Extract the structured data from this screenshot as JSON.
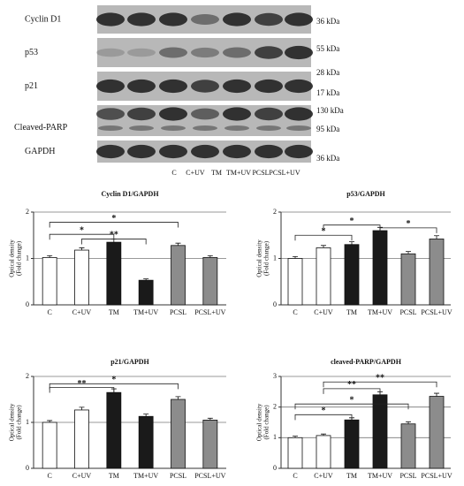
{
  "blot": {
    "proteins": [
      "Cyclin D1",
      "p53",
      "p21",
      "Cleaved-PARP",
      "GAPDH"
    ],
    "markers": [
      "36 kDa",
      "55 kDa",
      "28 kDa",
      "17 kDa",
      "130 kDa",
      "95 kDa",
      "36 kDa"
    ],
    "lanes": [
      "C",
      "C+UV",
      "TM",
      "TM+UV",
      "PCSL",
      "PCSL+UV"
    ]
  },
  "chart_data": [
    {
      "type": "bar",
      "title": "Cyclin D1/GAPDH",
      "ylabel": [
        "Optical density",
        "(Fold change)"
      ],
      "categories": [
        "C",
        "C+UV",
        "TM",
        "TM+UV",
        "PCSL",
        "PCSL+UV"
      ],
      "values": [
        1.02,
        1.18,
        1.35,
        0.53,
        1.28,
        1.02
      ],
      "errors": [
        0.04,
        0.05,
        0.07,
        0.03,
        0.05,
        0.04
      ],
      "colors": [
        "#ffffff",
        "#ffffff",
        "#1a1a1a",
        "#1a1a1a",
        "#8c8c8c",
        "#8c8c8c"
      ],
      "ylim": [
        0,
        2
      ],
      "yticks": [
        0,
        1,
        2
      ],
      "grid": true,
      "brackets": [
        {
          "between": [
            "C",
            "PCSL"
          ],
          "y": 1.78,
          "label": "*"
        },
        {
          "between": [
            "C",
            "TM"
          ],
          "y": 1.52,
          "label": "*"
        },
        {
          "between": [
            "C+UV",
            "TM+UV"
          ],
          "y": 1.42,
          "label": "**"
        }
      ]
    },
    {
      "type": "bar",
      "title": "p53/GAPDH",
      "ylabel": [
        "Optical density",
        "(Fold change)"
      ],
      "categories": [
        "C",
        "C+UV",
        "TM",
        "TM+UV",
        "PCSL",
        "PCSL+UV"
      ],
      "values": [
        1.0,
        1.23,
        1.3,
        1.6,
        1.1,
        1.42
      ],
      "errors": [
        0.04,
        0.05,
        0.06,
        0.07,
        0.05,
        0.07
      ],
      "colors": [
        "#ffffff",
        "#ffffff",
        "#1a1a1a",
        "#1a1a1a",
        "#8c8c8c",
        "#8c8c8c"
      ],
      "ylim": [
        0,
        2
      ],
      "yticks": [
        0,
        1,
        2
      ],
      "grid": true,
      "brackets": [
        {
          "between": [
            "C",
            "TM"
          ],
          "y": 1.5,
          "label": "*"
        },
        {
          "between": [
            "C+UV",
            "TM+UV"
          ],
          "y": 1.72,
          "label": "*"
        },
        {
          "between": [
            "TM+UV",
            "PCSL+UV"
          ],
          "y": 1.66,
          "label": "*"
        }
      ]
    },
    {
      "type": "bar",
      "title": "p21/GAPDH",
      "ylabel": [
        "Optical density",
        "(Fold change)"
      ],
      "categories": [
        "C",
        "C+UV",
        "TM",
        "TM+UV",
        "PCSL",
        "PCSL+UV"
      ],
      "values": [
        1.0,
        1.27,
        1.65,
        1.13,
        1.5,
        1.05
      ],
      "errors": [
        0.04,
        0.06,
        0.08,
        0.05,
        0.06,
        0.04
      ],
      "colors": [
        "#ffffff",
        "#ffffff",
        "#1a1a1a",
        "#1a1a1a",
        "#8c8c8c",
        "#8c8c8c"
      ],
      "ylim": [
        0,
        2
      ],
      "yticks": [
        0,
        1,
        2
      ],
      "grid": true,
      "brackets": [
        {
          "between": [
            "C",
            "TM"
          ],
          "y": 1.76,
          "label": "**"
        },
        {
          "between": [
            "C",
            "PCSL"
          ],
          "y": 1.84,
          "label": "*"
        }
      ]
    },
    {
      "type": "bar",
      "title": "cleaved-PARP/GAPDH",
      "ylabel": [
        "Optical density",
        "(Fold change)"
      ],
      "categories": [
        "C",
        "C+UV",
        "TM",
        "TM+UV",
        "PCSL",
        "PCSL+UV"
      ],
      "values": [
        1.0,
        1.07,
        1.58,
        2.4,
        1.45,
        2.35
      ],
      "errors": [
        0.05,
        0.05,
        0.07,
        0.1,
        0.07,
        0.1
      ],
      "colors": [
        "#ffffff",
        "#ffffff",
        "#1a1a1a",
        "#1a1a1a",
        "#8c8c8c",
        "#8c8c8c"
      ],
      "ylim": [
        0,
        3
      ],
      "yticks": [
        0,
        1,
        2,
        3
      ],
      "grid": true,
      "brackets": [
        {
          "between": [
            "C",
            "TM"
          ],
          "y": 1.75,
          "label": "*"
        },
        {
          "between": [
            "C",
            "PCSL"
          ],
          "y": 2.1,
          "label": "*"
        },
        {
          "between": [
            "C+UV",
            "TM+UV"
          ],
          "y": 2.6,
          "label": "**"
        },
        {
          "between": [
            "C+UV",
            "PCSL+UV"
          ],
          "y": 2.82,
          "label": "**"
        }
      ]
    }
  ]
}
